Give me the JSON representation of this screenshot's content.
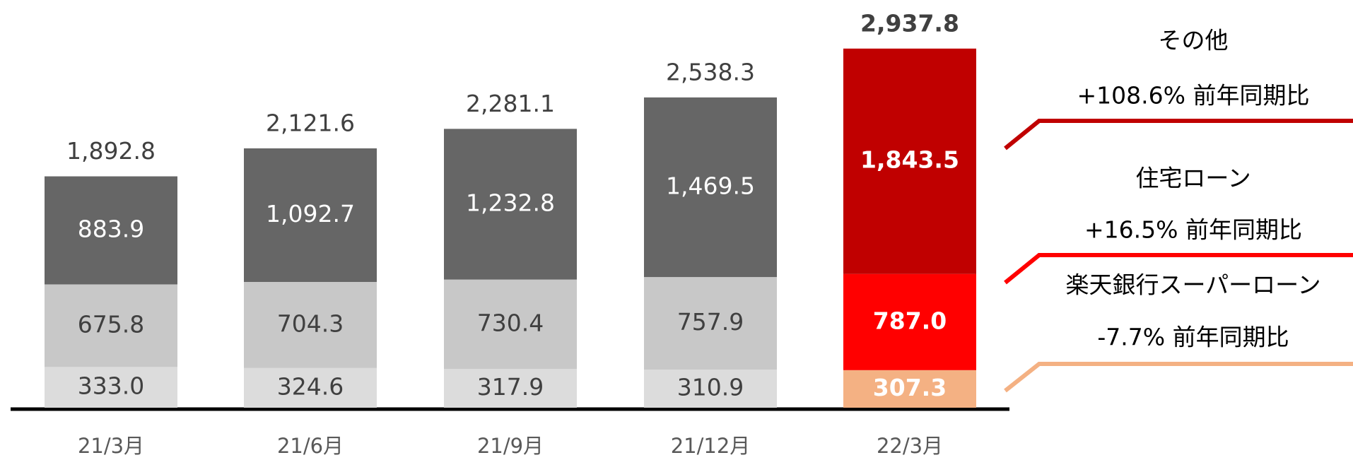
{
  "chart_data": {
    "type": "stacked_bar",
    "categories": [
      "21/3月",
      "21/6月",
      "21/9月",
      "21/12月",
      "22/3月"
    ],
    "ylim": [
      0,
      3000
    ],
    "highlight_index": 4,
    "series": [
      {
        "name": "楽天銀行スーパーローン",
        "color": "#dcdcdc",
        "highlight_color": "#f4b183",
        "label_color": "#404040",
        "values": [
          333.0,
          324.6,
          317.9,
          310.9,
          307.3
        ],
        "value_labels": [
          "333.0",
          "324.6",
          "317.9",
          "310.9",
          "307.3"
        ],
        "annotation": "-7.7% 前年同期比"
      },
      {
        "name": "住宅ローン",
        "color": "#c8c8c8",
        "highlight_color": "#ff0000",
        "label_color": "#404040",
        "values": [
          675.8,
          704.3,
          730.4,
          757.9,
          787.0
        ],
        "value_labels": [
          "675.8",
          "704.3",
          "730.4",
          "757.9",
          "787.0"
        ],
        "annotation": "+16.5% 前年同期比"
      },
      {
        "name": "その他",
        "color": "#666666",
        "highlight_color": "#c00000",
        "label_color": "#ffffff",
        "values": [
          883.9,
          1092.7,
          1232.8,
          1469.5,
          1843.5
        ],
        "value_labels": [
          "883.9",
          "1,092.7",
          "1,232.8",
          "1,469.5",
          "1,843.5"
        ],
        "annotation": "+108.6% 前年同期比"
      }
    ],
    "totals": [
      1892.8,
      2121.6,
      2281.1,
      2538.3,
      2937.8
    ],
    "total_labels": [
      "1,892.8",
      "2,121.6",
      "2,281.1",
      "2,538.3",
      "2,937.8"
    ]
  }
}
